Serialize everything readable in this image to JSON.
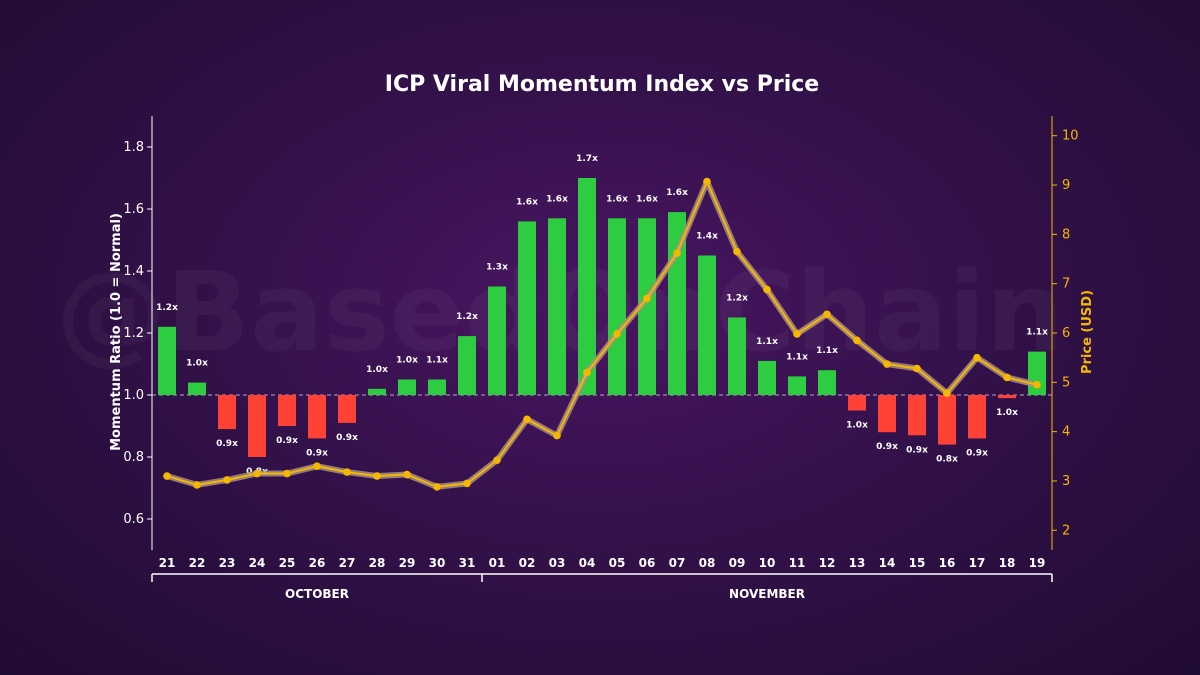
{
  "chart_data": {
    "type": "bar+line",
    "title": "ICP Viral Momentum Index vs Price",
    "ylabel_left": "Momentum Ratio (1.0 = Normal)",
    "ylabel_right": "Price (USD)",
    "ylim_left": [
      0.5,
      1.9
    ],
    "ylim_right": [
      1.6,
      10.4
    ],
    "yticks_left": [
      "0.6",
      "0.8",
      "1.0",
      "1.2",
      "1.4",
      "1.6",
      "1.8"
    ],
    "yticks_right": [
      "2",
      "3",
      "4",
      "5",
      "6",
      "7",
      "8",
      "9",
      "10"
    ],
    "baseline": 1.0,
    "categories": [
      "21",
      "22",
      "23",
      "24",
      "25",
      "26",
      "27",
      "28",
      "29",
      "30",
      "31",
      "01",
      "02",
      "03",
      "04",
      "05",
      "06",
      "07",
      "08",
      "09",
      "10",
      "11",
      "12",
      "13",
      "14",
      "15",
      "16",
      "17",
      "18",
      "19"
    ],
    "months": [
      {
        "label": "OCTOBER",
        "start": 0,
        "end": 10
      },
      {
        "label": "NOVEMBER",
        "start": 11,
        "end": 29
      }
    ],
    "series": [
      {
        "name": "Momentum Ratio",
        "kind": "bar",
        "values": [
          1.22,
          1.04,
          0.89,
          0.8,
          0.9,
          0.86,
          0.91,
          1.02,
          1.05,
          1.05,
          1.19,
          1.35,
          1.56,
          1.57,
          1.7,
          1.57,
          1.57,
          1.59,
          1.45,
          1.25,
          1.11,
          1.06,
          1.08,
          0.95,
          0.88,
          0.87,
          0.84,
          0.86,
          0.99,
          1.14
        ],
        "labels": [
          "1.2x",
          "1.0x",
          "0.9x",
          "0.8x",
          "0.9x",
          "0.9x",
          "0.9x",
          "1.0x",
          "1.0x",
          "1.1x",
          "1.2x",
          "1.3x",
          "1.6x",
          "1.6x",
          "1.7x",
          "1.6x",
          "1.6x",
          "1.6x",
          "1.4x",
          "1.2x",
          "1.1x",
          "1.1x",
          "1.1x",
          "1.0x",
          "0.9x",
          "0.9x",
          "0.8x",
          "0.9x",
          "1.0x",
          "1.1x"
        ],
        "color_up": "#2ecc40",
        "color_down": "#ff4136"
      },
      {
        "name": "Price (USD)",
        "kind": "line",
        "values": [
          3.1,
          2.92,
          3.02,
          3.15,
          3.15,
          3.3,
          3.18,
          3.1,
          3.13,
          2.88,
          2.95,
          3.42,
          4.25,
          3.92,
          5.2,
          5.98,
          6.7,
          7.62,
          9.07,
          7.65,
          6.88,
          5.98,
          6.38,
          5.85,
          5.37,
          5.28,
          4.78,
          5.5,
          5.1,
          4.95
        ],
        "color": "#f5b800"
      }
    ],
    "watermark": "@BasedOnChain"
  }
}
